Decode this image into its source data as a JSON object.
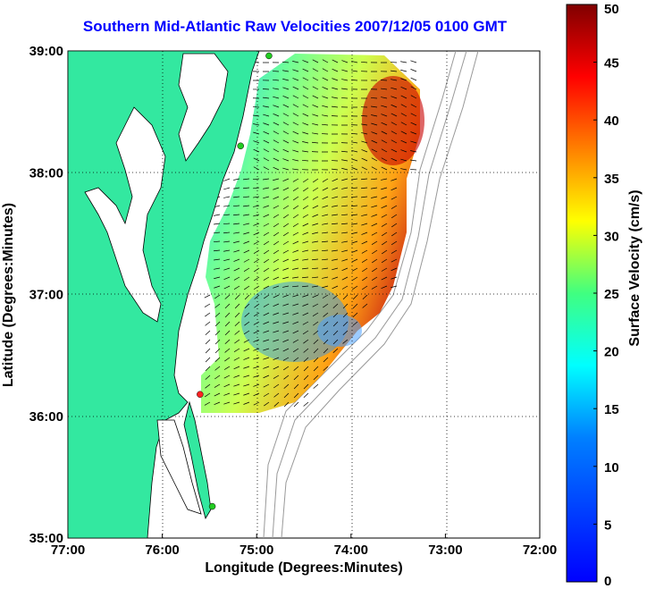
{
  "title": "Southern Mid-Atlantic Raw Velocities 2007/12/05 0100 GMT",
  "x_axis": {
    "label": "Longitude (Degrees:Minutes)",
    "ticks": [
      "77:00",
      "76:00",
      "75:00",
      "74:00",
      "73:00",
      "72:00"
    ]
  },
  "y_axis": {
    "label": "Latitude (Degrees:Minutes)",
    "ticks": [
      "39:00",
      "38:00",
      "37:00",
      "36:00",
      "35:00"
    ]
  },
  "colorbar": {
    "label": "Surface Velocity (cm/s)",
    "ticks": [
      "50",
      "45",
      "40",
      "35",
      "30",
      "25",
      "20",
      "15",
      "10",
      "5",
      "0"
    ],
    "range": [
      0,
      50
    ],
    "colormap": "jet"
  },
  "colors": {
    "title": "#0000ff",
    "land": "#33e8a0",
    "coast": "#000000",
    "bathymetry": "#999999",
    "grid": "#000000",
    "station_active": "#22cc22",
    "station_alert": "#ff2222"
  },
  "map": {
    "lon_range": [
      -77,
      -72
    ],
    "lat_range": [
      35,
      39
    ],
    "grid": "dotted",
    "stations": [
      {
        "lon": -74.87,
        "lat": 38.96,
        "status": "active"
      },
      {
        "lon": -75.17,
        "lat": 38.22,
        "status": "active"
      },
      {
        "lon": -75.6,
        "lat": 36.18,
        "status": "alert"
      },
      {
        "lon": -75.47,
        "lat": 35.26,
        "status": "active"
      }
    ]
  }
}
